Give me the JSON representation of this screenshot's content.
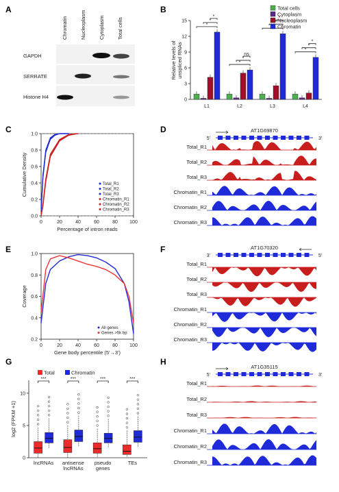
{
  "panels": {
    "A": {
      "letter": "A",
      "columns": [
        "Chromatin",
        "Nucleoplasm",
        "Cytoplasm",
        "Total cells"
      ],
      "rows": [
        "GAPDH",
        "SERRATE",
        "Histone H4"
      ]
    },
    "B": {
      "letter": "B",
      "chart_data": {
        "type": "bar",
        "categories": [
          "L1",
          "L2",
          "L3",
          "L4"
        ],
        "ylabel": "Relative levels of unspliced RNAs",
        "ylim": [
          0,
          15
        ],
        "yticks": [
          0,
          3,
          6,
          9,
          12,
          15
        ],
        "series": [
          {
            "name": "Total cells",
            "color": "#4caf50",
            "values": [
              1.0,
              1.0,
              1.0,
              1.0
            ]
          },
          {
            "name": "Cytoplasm",
            "color": "#5b2a86",
            "values": [
              0.2,
              0.3,
              0.2,
              0.3
            ]
          },
          {
            "name": "Nucleoplasm",
            "color": "#a0102a",
            "values": [
              4.2,
              5.0,
              2.6,
              1.2
            ]
          },
          {
            "name": "Chromatin",
            "color": "#1f2ad8",
            "values": [
              12.8,
              5.6,
              12.5,
              8.0
            ]
          }
        ],
        "annotations": [
          "*",
          "*",
          "*",
          "*",
          "*",
          "ns",
          "*",
          "*",
          "*",
          "*",
          "*",
          "*"
        ]
      }
    },
    "C": {
      "letter": "C",
      "chart_data": {
        "type": "line",
        "xlabel": "Percentage of intron reads",
        "ylabel": "Cumulative Density",
        "xlim": [
          0,
          100
        ],
        "ylim": [
          0,
          1
        ],
        "xticks": [
          0,
          20,
          40,
          60,
          80,
          100
        ],
        "yticks": [
          0.0,
          0.2,
          0.4,
          0.6,
          0.8,
          1.0
        ],
        "series": [
          {
            "name": "Total_R1",
            "color": "#1f2ad8",
            "x": [
              0,
              2,
              5,
              10,
              15,
              20,
              30
            ],
            "y": [
              0.05,
              0.5,
              0.8,
              0.95,
              0.99,
              1.0,
              1.0
            ]
          },
          {
            "name": "Total_R2",
            "color": "#1f2ad8",
            "x": [
              0,
              2,
              5,
              10,
              15,
              20,
              30
            ],
            "y": [
              0.05,
              0.48,
              0.78,
              0.94,
              0.99,
              1.0,
              1.0
            ]
          },
          {
            "name": "Total_R3",
            "color": "#1f2ad8",
            "x": [
              0,
              2,
              5,
              10,
              15,
              20,
              30
            ],
            "y": [
              0.05,
              0.46,
              0.77,
              0.93,
              0.98,
              1.0,
              1.0
            ]
          },
          {
            "name": "Chromatin_R1",
            "color": "#cc1f1f",
            "x": [
              0,
              2,
              5,
              10,
              20,
              30,
              40
            ],
            "y": [
              0.0,
              0.15,
              0.45,
              0.75,
              0.93,
              0.99,
              1.0
            ]
          },
          {
            "name": "Chromatin_R2",
            "color": "#cc1f1f",
            "x": [
              0,
              2,
              5,
              10,
              20,
              30,
              40
            ],
            "y": [
              0.0,
              0.13,
              0.43,
              0.73,
              0.92,
              0.99,
              1.0
            ]
          },
          {
            "name": "Chromatin_R3",
            "color": "#cc1f1f",
            "x": [
              0,
              2,
              5,
              10,
              20,
              30,
              40
            ],
            "y": [
              0.0,
              0.12,
              0.41,
              0.72,
              0.91,
              0.98,
              1.0
            ]
          }
        ],
        "legend_position": "bottom-right"
      }
    },
    "D": {
      "letter": "D",
      "gene": "AT1G69870",
      "end5": "5'",
      "end3": "3'",
      "tracks": [
        "Total_R1",
        "Total_R2",
        "Total_R3",
        "Chromatin_R1",
        "Chromatin_R2",
        "Chromatin_R3"
      ]
    },
    "E": {
      "letter": "E",
      "chart_data": {
        "type": "line",
        "xlabel": "Gene body percentile (5'→3')",
        "ylabel": "Coverage",
        "xlim": [
          0,
          100
        ],
        "ylim": [
          0.2,
          1.0
        ],
        "xticks": [
          0,
          20,
          40,
          60,
          80,
          100
        ],
        "yticks": [
          0.2,
          0.4,
          0.6,
          0.8,
          1.0
        ],
        "series": [
          {
            "name": "All genes",
            "color": "#1f2ad8",
            "x": [
              0,
              5,
              10,
              20,
              30,
              40,
              50,
              60,
              70,
              80,
              90,
              95,
              100
            ],
            "y": [
              0.35,
              0.72,
              0.85,
              0.93,
              0.97,
              0.99,
              0.98,
              0.96,
              0.92,
              0.86,
              0.72,
              0.55,
              0.25
            ]
          },
          {
            "name": "Genes >5k bp",
            "color": "#ee3333",
            "x": [
              0,
              5,
              10,
              20,
              30,
              40,
              50,
              60,
              70,
              80,
              90,
              95,
              100
            ],
            "y": [
              0.45,
              0.85,
              0.95,
              0.98,
              0.96,
              0.93,
              0.9,
              0.88,
              0.85,
              0.8,
              0.72,
              0.6,
              0.35
            ]
          }
        ],
        "legend_position": "bottom-right"
      }
    },
    "F": {
      "letter": "F",
      "gene": "AT1G70320",
      "end5": "5'",
      "end3": "3'",
      "tracks": [
        "Total_R1",
        "Total_R2",
        "Total_R3",
        "Chromatin_R1",
        "Chromatin_R2",
        "Chromatin_R3"
      ]
    },
    "G": {
      "letter": "G",
      "chart_data": {
        "type": "box",
        "categories": [
          "lncRNAs",
          "antisense lncRNAs",
          "pseudo genes",
          "TEs"
        ],
        "ylabel": "log2 (FPKM +1)",
        "ylim": [
          0,
          12
        ],
        "yticks": [
          0,
          5,
          10
        ],
        "series": [
          {
            "name": "Total",
            "color": "#ee2a2a",
            "medians": [
              1.5,
              1.6,
              1.4,
              1.0
            ],
            "q1": [
              0.7,
              0.8,
              0.7,
              0.5
            ],
            "q3": [
              2.5,
              2.8,
              2.3,
              2.0
            ]
          },
          {
            "name": "Chromatin",
            "color": "#1f2ad8",
            "medians": [
              3.0,
              3.3,
              3.0,
              3.2
            ],
            "q1": [
              2.3,
              2.5,
              2.3,
              2.4
            ],
            "q3": [
              3.9,
              4.3,
              3.8,
              4.2
            ]
          }
        ],
        "annotations": [
          "***",
          "***",
          "***",
          "***"
        ]
      }
    },
    "H": {
      "letter": "H",
      "gene": "AT1G35115",
      "end5": "5'",
      "end3": "3'",
      "tracks": [
        "Total_R1",
        "Total_R2",
        "Total_R3",
        "Chromatin_R1",
        "Chromatin_R2",
        "Chromatin_R3"
      ]
    }
  }
}
